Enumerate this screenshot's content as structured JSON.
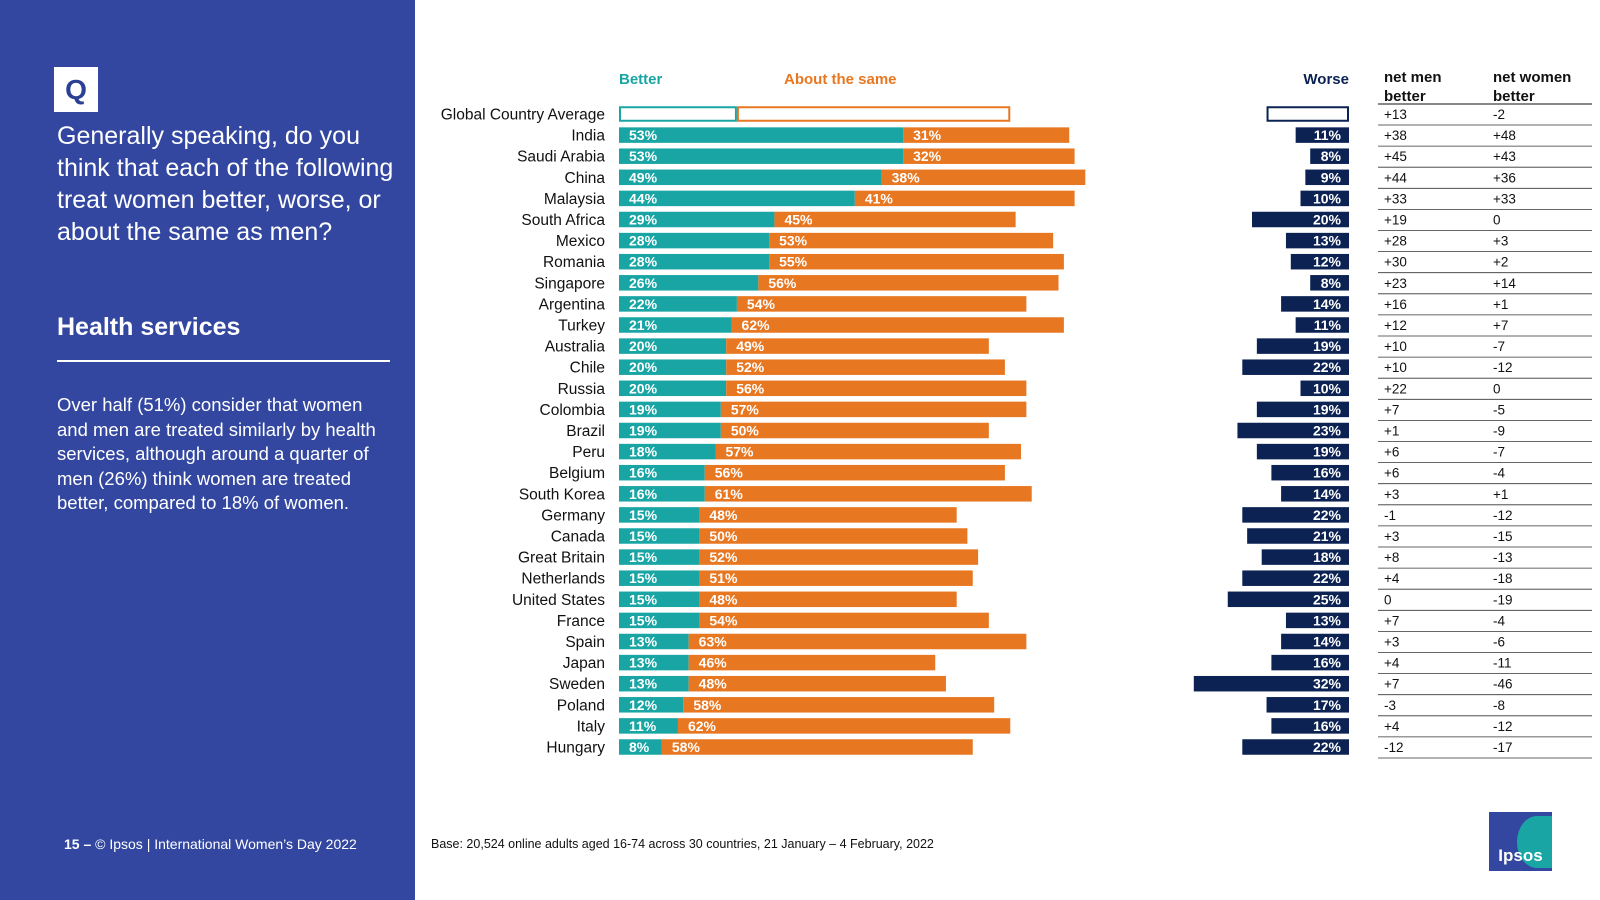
{
  "sidebar": {
    "q_label": "Q",
    "question": "Generally speaking, do you think that each of the following treat women better, worse, or about the same as men?",
    "topic": "Health services",
    "summary": "Over half (51%) consider that women and men are treated similarly by health services, although around a quarter of men (26%) think women are treated better, compared to 18% of women."
  },
  "footer": {
    "page": "15 –",
    "copyright": "© Ipsos | International Women’s Day 2022",
    "base": "Base: 20,524 online adults aged 16-74 across 30 countries, 21 January – 4 February, 2022"
  },
  "logo": {
    "text": "Ipsos"
  },
  "colors": {
    "better": "#1aa5a5",
    "same": "#e87722",
    "worse": "#0b2253",
    "sidebar": "#3347a0"
  },
  "chart_data": {
    "type": "bar",
    "orientation": "horizontal",
    "stacked": true,
    "series_headers": [
      "Better",
      "About the same",
      "Worse"
    ],
    "net_headers": [
      "net men better",
      "net women better"
    ],
    "categories": [
      "Global Country Average",
      "India",
      "Saudi Arabia",
      "China",
      "Malaysia",
      "South Africa",
      "Mexico",
      "Romania",
      "Singapore",
      "Argentina",
      "Turkey",
      "Australia",
      "Chile",
      "Russia",
      "Colombia",
      "Brazil",
      "Peru",
      "Belgium",
      "South Korea",
      "Germany",
      "Canada",
      "Great Britain",
      "Netherlands",
      "United States",
      "France",
      "Spain",
      "Japan",
      "Sweden",
      "Poland",
      "Italy",
      "Hungary"
    ],
    "better": [
      22,
      53,
      53,
      49,
      44,
      29,
      28,
      28,
      26,
      22,
      21,
      20,
      20,
      20,
      19,
      19,
      18,
      16,
      16,
      15,
      15,
      15,
      15,
      15,
      15,
      13,
      13,
      13,
      12,
      11,
      8
    ],
    "same": [
      51,
      31,
      32,
      38,
      41,
      45,
      53,
      55,
      56,
      54,
      62,
      49,
      52,
      56,
      57,
      50,
      57,
      56,
      61,
      48,
      50,
      52,
      51,
      48,
      54,
      63,
      46,
      48,
      58,
      62,
      58
    ],
    "worse": [
      17,
      11,
      8,
      9,
      10,
      20,
      13,
      12,
      8,
      14,
      11,
      19,
      22,
      10,
      19,
      23,
      19,
      16,
      14,
      22,
      21,
      18,
      22,
      25,
      13,
      14,
      16,
      32,
      17,
      16,
      22
    ],
    "net_men_better": [
      "+13",
      "+38",
      "+45",
      "+44",
      "+33",
      "+19",
      "+28",
      "+30",
      "+23",
      "+16",
      "+12",
      "+10",
      "+10",
      "+22",
      "+7",
      "+1",
      "+6",
      "+6",
      "+3",
      "-1",
      "+3",
      "+8",
      "+4",
      "0",
      "+7",
      "+3",
      "+4",
      "+7",
      "-3",
      "+4",
      "-12"
    ],
    "net_women_better": [
      "-2",
      "+48",
      "+43",
      "+36",
      "+33",
      "0",
      "+3",
      "+2",
      "+14",
      "+1",
      "+7",
      "-7",
      "-12",
      "0",
      "-5",
      "-9",
      "-7",
      "-4",
      "+1",
      "-12",
      "-15",
      "-13",
      "-18",
      "-19",
      "-4",
      "-6",
      "-11",
      "-46",
      "-8",
      "-12",
      "-17"
    ],
    "value_format": "percent",
    "highlight_first_row_outline": true
  }
}
